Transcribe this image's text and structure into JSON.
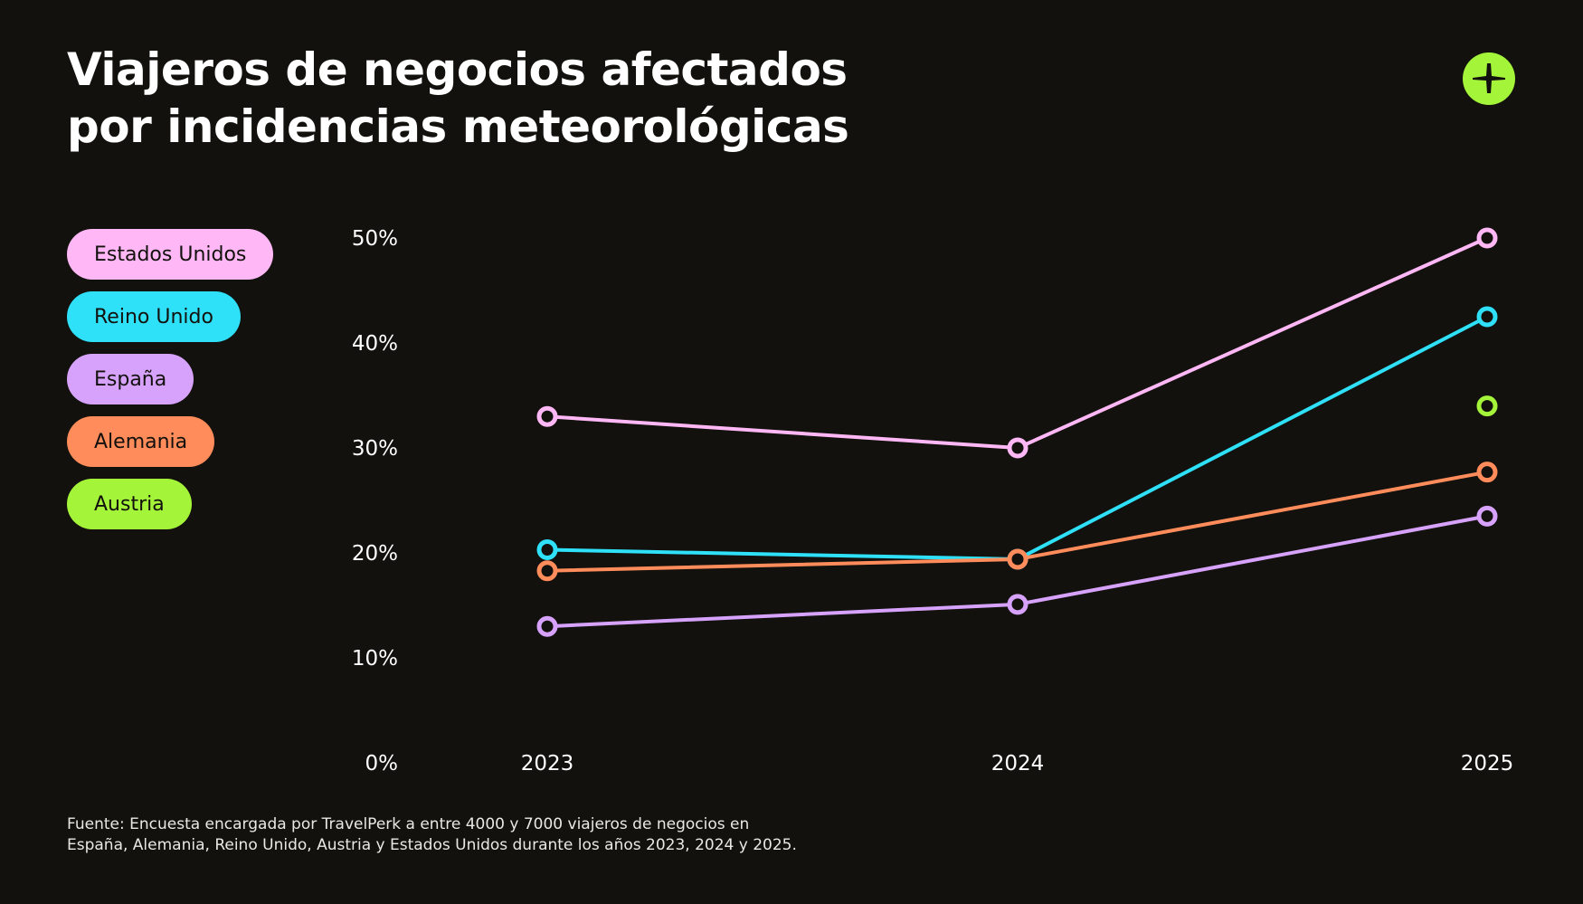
{
  "title": [
    "Viajeros de negocios afectados",
    "por incidencias meteorológicas"
  ],
  "logo_icon": "travelperk-plus-logo",
  "colors": {
    "background": "#12110d",
    "logo": "#a4f53a"
  },
  "chart_data": {
    "type": "line",
    "categories": [
      "2023",
      "2024",
      "2025"
    ],
    "yticks": [
      "0%",
      "10%",
      "20%",
      "30%",
      "40%",
      "50%"
    ],
    "ylim": [
      0,
      50
    ],
    "grid": false,
    "legend_position": "left",
    "series": [
      {
        "name": "Estados Unidos",
        "color": "#ffb8f5",
        "values": [
          33,
          30,
          50
        ]
      },
      {
        "name": "Reino Unido",
        "color": "#2ee0f8",
        "values": [
          20.3,
          19.4,
          42.5
        ]
      },
      {
        "name": "España",
        "color": "#d7a2fb",
        "values": [
          13,
          15.1,
          23.5
        ]
      },
      {
        "name": "Alemania",
        "color": "#ff8c5a",
        "values": [
          18.3,
          19.4,
          27.7
        ]
      },
      {
        "name": "Austria",
        "color": "#a4f53a",
        "values": [
          null,
          null,
          34
        ]
      }
    ]
  },
  "footnote": [
    "Fuente: Encuesta encargada por TravelPerk a entre 4000 y 7000 viajeros de negocios en",
    "España, Alemania, Reino Unido, Austria y Estados Unidos durante los años 2023, 2024 y 2025."
  ]
}
